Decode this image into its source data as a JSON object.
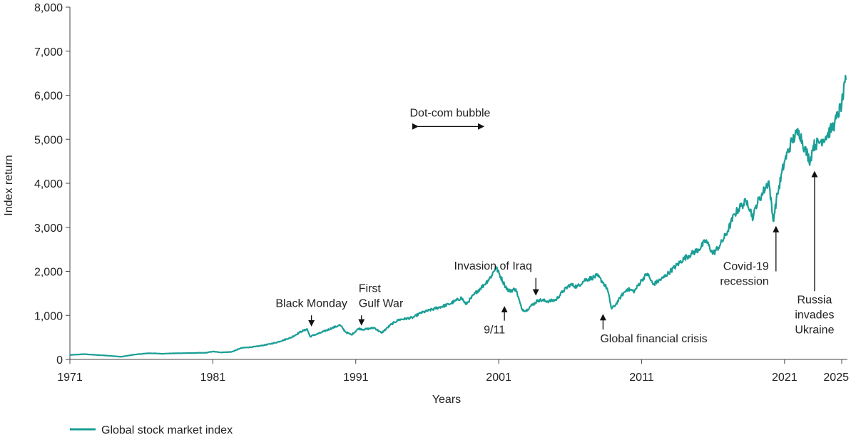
{
  "chart_data": {
    "type": "line",
    "title": "",
    "xlabel": "Years",
    "ylabel": "Index return",
    "xlim": [
      1971,
      2025.4
    ],
    "ylim": [
      0,
      8000
    ],
    "y_ticks": [
      0,
      1000,
      2000,
      3000,
      4000,
      5000,
      6000,
      7000,
      8000
    ],
    "y_tick_labels": [
      "0",
      "1,000",
      "2,000",
      "3,000",
      "4,000",
      "5,000",
      "6,000",
      "7,000",
      "8,000"
    ],
    "x_ticks": [
      1971,
      1981,
      1991,
      2001,
      2011,
      2021,
      2025
    ],
    "x_tick_labels": [
      "1971",
      "1981",
      "1991",
      "2001",
      "2011",
      "2021",
      "2025"
    ],
    "grid": false,
    "legend_position": "bottom-left",
    "series": [
      {
        "name": "Global stock market index",
        "color": "#1a9e96",
        "x": [
          1971,
          1972,
          1972.9,
          1973.5,
          1974.6,
          1975.5,
          1976.5,
          1977.5,
          1978.5,
          1979.5,
          1980.5,
          1981,
          1981.5,
          1982.3,
          1983,
          1984,
          1985,
          1985.5,
          1986.5,
          1987.1,
          1987.6,
          1987.8,
          1988.5,
          1989.4,
          1989.9,
          1990.3,
          1990.7,
          1991.2,
          1991.6,
          1992.3,
          1992.8,
          1993.5,
          1994,
          1995,
          1995.5,
          1996.5,
          1997.5,
          1998.4,
          1998.7,
          1999.5,
          2000,
          2000.5,
          2000.8,
          2001.4,
          2001.7,
          2002.2,
          2002.6,
          2002.9,
          2003.2,
          2003.8,
          2004.5,
          2005,
          2005.5,
          2006,
          2006.5,
          2007,
          2007.5,
          2007.9,
          2008.3,
          2008.6,
          2008.9,
          2009.2,
          2009.6,
          2010,
          2010.5,
          2011,
          2011.4,
          2011.8,
          2012.5,
          2013,
          2014,
          2014.5,
          2015,
          2015.5,
          2016,
          2016.5,
          2017,
          2017.5,
          2018,
          2018.4,
          2018.8,
          2019,
          2019.5,
          2019.9,
          2020.2,
          2020.5,
          2021,
          2021.5,
          2022,
          2022.4,
          2022.8,
          2023,
          2023.5,
          2024,
          2024.5,
          2025,
          2025.3
        ],
        "values": [
          100,
          120,
          100,
          90,
          60,
          110,
          140,
          130,
          140,
          145,
          150,
          180,
          160,
          170,
          260,
          290,
          350,
          390,
          500,
          620,
          690,
          520,
          600,
          720,
          780,
          620,
          560,
          700,
          680,
          720,
          600,
          800,
          900,
          950,
          1050,
          1150,
          1250,
          1400,
          1250,
          1550,
          1700,
          1900,
          2100,
          1700,
          1550,
          1600,
          1150,
          1100,
          1200,
          1350,
          1320,
          1350,
          1550,
          1700,
          1650,
          1800,
          1850,
          1900,
          1750,
          1600,
          1150,
          1250,
          1450,
          1600,
          1550,
          1800,
          1950,
          1700,
          1850,
          2000,
          2300,
          2400,
          2500,
          2700,
          2400,
          2600,
          2900,
          3300,
          3500,
          3600,
          3200,
          3500,
          3800,
          4050,
          3150,
          3750,
          4500,
          4950,
          5200,
          4800,
          4500,
          4850,
          4950,
          5100,
          5350,
          5800,
          6350
        ]
      }
    ],
    "annotations": [
      {
        "id": "dot-com",
        "lines": [
          "Dot-com bubble"
        ],
        "range": [
          1995.3,
          1999.9
        ],
        "y": 5290
      },
      {
        "id": "black-monday",
        "lines": [
          "Black Monday"
        ],
        "x": 1987.9,
        "from_y": 1000,
        "to_y": 780
      },
      {
        "id": "gulf-war",
        "lines": [
          "First",
          "Gulf War"
        ],
        "x": 1991.4,
        "from_y": 1000,
        "to_y": 800
      },
      {
        "id": "iraq",
        "lines": [
          "Invasion of Iraq"
        ],
        "x": 2003.6,
        "from_y": 1850,
        "to_y": 1480
      },
      {
        "id": "nine-eleven",
        "lines": [
          "9/11"
        ],
        "x": 2001.4,
        "from_y": 880,
        "to_y": 1180
      },
      {
        "id": "gfc",
        "lines": [
          "Global financial crisis"
        ],
        "x": 2008.3,
        "from_y": 680,
        "to_y": 1000
      },
      {
        "id": "covid",
        "lines": [
          "Covid-19",
          "recession"
        ],
        "x": 2020.4,
        "from_y": 2000,
        "to_y": 3000
      },
      {
        "id": "russia",
        "lines": [
          "Russia",
          "invades",
          "Ukraine"
        ],
        "x": 2023.1,
        "from_y": 1550,
        "to_y": 4250
      }
    ]
  }
}
